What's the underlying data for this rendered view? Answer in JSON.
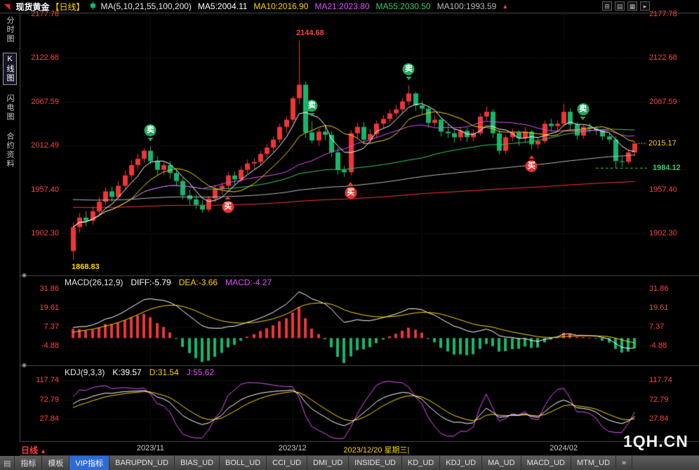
{
  "top_bar": {
    "app_icon": "◥",
    "symbol": "现货黄金",
    "period_tag": "【日线】",
    "ma_legend": [
      {
        "text": "MA(5,10,21,55,100,200)",
        "color": "#e8e8e8"
      },
      {
        "text": "MA5:2004.11",
        "color": "#ffffff"
      },
      {
        "text": "MA10:2016.90",
        "color": "#ffd400"
      },
      {
        "text": "MA21:2023.80",
        "color": "#e54dff"
      },
      {
        "text": "MA55:2030.50",
        "color": "#33cc66"
      },
      {
        "text": "MA100:1993.59",
        "color": "#b8b8b8"
      }
    ],
    "more_icon": "▲",
    "window_icons": [
      {
        "key": "grid-layout",
        "glyph": "⊞"
      },
      {
        "key": "rows-layout",
        "glyph": "▤"
      },
      {
        "key": "columns-layout",
        "glyph": "▦"
      },
      {
        "key": "expand",
        "glyph": "▸"
      }
    ]
  },
  "sidebar": {
    "items": [
      {
        "key": "time-chart",
        "label": "分时图",
        "selected": false
      },
      {
        "key": "kline-chart",
        "label": "K线图",
        "selected": true
      },
      {
        "key": "flash-chart",
        "label": "闪电图",
        "selected": false
      },
      {
        "key": "contract-info",
        "label": "合约资料",
        "selected": false
      }
    ]
  },
  "chart_data": {
    "type": "candlestick",
    "title": "现货黄金 日线",
    "panels": {
      "main": {
        "y_ticks": [
          2177.78,
          2122.68,
          2067.59,
          2012.49,
          1957.4,
          1902.3
        ],
        "y_ticks_right": [
          2177.78,
          2122.68,
          2067.59,
          1957.4,
          1902.3
        ],
        "annotations": {
          "high_label": "2144.68",
          "low_label": "1868.83",
          "last_price": "2015.17",
          "low_line": "1984.12"
        }
      },
      "macd": {
        "params": [
          26,
          12,
          9
        ],
        "legend": [
          {
            "text": "MACD(26,12,9)",
            "color": "#e8e8e8"
          },
          {
            "text": "DIFF:-5.79",
            "color": "#ffffff"
          },
          {
            "text": "DEA:-3.66",
            "color": "#ffd400"
          },
          {
            "text": "MACD:-4.27",
            "color": "#e54dff"
          }
        ],
        "y_ticks": [
          31.86,
          19.61,
          7.37,
          -4.88
        ]
      },
      "kdj": {
        "params": [
          9,
          3,
          3
        ],
        "legend": [
          {
            "text": "KDJ(9,3,3)",
            "color": "#e8e8e8"
          },
          {
            "text": "K:39.57",
            "color": "#ffffff"
          },
          {
            "text": "D:31.54",
            "color": "#ffd400"
          },
          {
            "text": "J:55.62",
            "color": "#e54dff"
          }
        ],
        "y_ticks": [
          117.74,
          72.79,
          27.84
        ]
      }
    },
    "ma_series": [
      {
        "period": 5,
        "color": "#ffffff"
      },
      {
        "period": 10,
        "color": "#ffd400"
      },
      {
        "period": 21,
        "color": "#e54dff"
      },
      {
        "period": 55,
        "color": "#33cc66"
      },
      {
        "period": 100,
        "color": "#b8b8b8",
        "seed": 1945
      },
      {
        "period": 200,
        "color": "#ff3333",
        "seed": 1935
      }
    ],
    "ohlc": [
      [
        1880,
        1916,
        1868.83,
        1910
      ],
      [
        1910,
        1928,
        1903,
        1922
      ],
      [
        1922,
        1930,
        1911,
        1918
      ],
      [
        1918,
        1936,
        1913,
        1930
      ],
      [
        1930,
        1948,
        1926,
        1942
      ],
      [
        1942,
        1960,
        1938,
        1955
      ],
      [
        1955,
        1961,
        1942,
        1948
      ],
      [
        1948,
        1968,
        1945,
        1962
      ],
      [
        1962,
        1981,
        1958,
        1975
      ],
      [
        1975,
        1994,
        1971,
        1988
      ],
      [
        1988,
        2002,
        1982,
        1996
      ],
      [
        1996,
        2009,
        1991,
        2006
      ],
      [
        2006,
        2012,
        1989,
        1993
      ],
      [
        1993,
        1999,
        1975,
        1982
      ],
      [
        1982,
        1992,
        1976,
        1988
      ],
      [
        1988,
        1993,
        1971,
        1978
      ],
      [
        1978,
        1983,
        1961,
        1968
      ],
      [
        1968,
        1972,
        1945,
        1950
      ],
      [
        1950,
        1957,
        1938,
        1945
      ],
      [
        1945,
        1951,
        1933,
        1938
      ],
      [
        1938,
        1944,
        1928,
        1932
      ],
      [
        1932,
        1949,
        1929,
        1946
      ],
      [
        1946,
        1963,
        1941,
        1958
      ],
      [
        1958,
        1966,
        1951,
        1962
      ],
      [
        1962,
        1979,
        1957,
        1975
      ],
      [
        1975,
        1980,
        1963,
        1970
      ],
      [
        1970,
        1986,
        1966,
        1982
      ],
      [
        1982,
        1995,
        1977,
        1990
      ],
      [
        1990,
        1997,
        1983,
        1992
      ],
      [
        1992,
        2006,
        1987,
        2002
      ],
      [
        2002,
        2014,
        1997,
        2010
      ],
      [
        2010,
        2024,
        2004,
        2020
      ],
      [
        2020,
        2040,
        2016,
        2036
      ],
      [
        2036,
        2049,
        2028,
        2045
      ],
      [
        2045,
        2075,
        2041,
        2072
      ],
      [
        2072,
        2144.68,
        2064,
        2089
      ],
      [
        2089,
        2093,
        2022,
        2029
      ],
      [
        2029,
        2043,
        2015,
        2019
      ],
      [
        2019,
        2034,
        2012,
        2030
      ],
      [
        2030,
        2038,
        2019,
        2026
      ],
      [
        2026,
        2031,
        1998,
        2004
      ],
      [
        2004,
        2010,
        1976,
        1982
      ],
      [
        1982,
        1987,
        1973,
        1979
      ],
      [
        1979,
        2032,
        1975,
        2028
      ],
      [
        2028,
        2041,
        2021,
        2036
      ],
      [
        2036,
        2042,
        2014,
        2020
      ],
      [
        2020,
        2033,
        2015,
        2027
      ],
      [
        2027,
        2044,
        2022,
        2040
      ],
      [
        2040,
        2051,
        2034,
        2046
      ],
      [
        2046,
        2058,
        2041,
        2053
      ],
      [
        2053,
        2064,
        2048,
        2058
      ],
      [
        2058,
        2072,
        2053,
        2068
      ],
      [
        2068,
        2088.37,
        2063,
        2078
      ],
      [
        2078,
        2080,
        2056,
        2063
      ],
      [
        2063,
        2069,
        2052,
        2059
      ],
      [
        2059,
        2062,
        2035,
        2041
      ],
      [
        2041,
        2051,
        2036,
        2045
      ],
      [
        2045,
        2048,
        2024,
        2030
      ],
      [
        2030,
        2039,
        2022,
        2028
      ],
      [
        2028,
        2033,
        2016,
        2023
      ],
      [
        2023,
        2036,
        2018,
        2031
      ],
      [
        2031,
        2035,
        2017,
        2023
      ],
      [
        2023,
        2033,
        2018,
        2028
      ],
      [
        2028,
        2053,
        2025,
        2049
      ],
      [
        2049,
        2062,
        2044,
        2055
      ],
      [
        2055,
        2058,
        2022,
        2028
      ],
      [
        2028,
        2032,
        2001,
        2006
      ],
      [
        2006,
        2026,
        2002,
        2023
      ],
      [
        2023,
        2034,
        2018,
        2029
      ],
      [
        2029,
        2032,
        2012,
        2022
      ],
      [
        2022,
        2036,
        2017,
        2030
      ],
      [
        2030,
        2032,
        2008,
        2014
      ],
      [
        2014,
        2023,
        2009,
        2018
      ],
      [
        2018,
        2044,
        2015,
        2040
      ],
      [
        2040,
        2046,
        2030,
        2037
      ],
      [
        2037,
        2044,
        2031,
        2040
      ],
      [
        2040,
        2065,
        2036,
        2055
      ],
      [
        2055,
        2059,
        2031,
        2039
      ],
      [
        2039,
        2042,
        2020,
        2025
      ],
      [
        2025,
        2038,
        2021,
        2036
      ],
      [
        2036,
        2040,
        2029,
        2034
      ],
      [
        2034,
        2037,
        2026,
        2031
      ],
      [
        2031,
        2033,
        2019,
        2024
      ],
      [
        2024,
        2028,
        2015,
        2020
      ],
      [
        2020,
        2024,
        1984.12,
        1993
      ],
      [
        1993,
        1999,
        1986,
        1992
      ],
      [
        1992,
        2007,
        1989,
        2004
      ],
      [
        2004,
        2017,
        1999,
        2015.17
      ]
    ],
    "signals": [
      {
        "index": 12,
        "type": "sell",
        "label": "卖"
      },
      {
        "index": 24,
        "type": "buy",
        "label": "买"
      },
      {
        "index": 37,
        "type": "sell",
        "label": "卖"
      },
      {
        "index": 43,
        "type": "buy",
        "label": "买"
      },
      {
        "index": 52,
        "type": "sell",
        "label": "卖"
      },
      {
        "index": 71,
        "type": "buy",
        "label": "买"
      },
      {
        "index": 79,
        "type": "sell",
        "label": "卖"
      }
    ],
    "x_labels": [
      {
        "index": 12,
        "label": "2023/11",
        "highlight": false
      },
      {
        "index": 34,
        "label": "2023/12",
        "highlight": false
      },
      {
        "index": 47,
        "label": "2023/12/20 星期三|",
        "highlight": true
      },
      {
        "index": 76,
        "label": "2024/02",
        "highlight": false
      }
    ]
  },
  "bottom": {
    "period_label": "日线",
    "period_icon": "▲",
    "watermark": "1QH.CN",
    "tab_icon": "▤",
    "tabs": [
      {
        "key": "indicators",
        "label": "指标",
        "selected": false
      },
      {
        "key": "templates",
        "label": "模板",
        "selected": false
      },
      {
        "key": "vip-indicators",
        "label": "VIP指标",
        "selected": true
      },
      {
        "key": "barupdn-ud",
        "label": "BARUPDN_UD",
        "selected": false
      },
      {
        "key": "bias-ud",
        "label": "BIAS_UD",
        "selected": false
      },
      {
        "key": "boll-ud",
        "label": "BOLL_UD",
        "selected": false
      },
      {
        "key": "cci-ud",
        "label": "CCI_UD",
        "selected": false
      },
      {
        "key": "dmi-ud",
        "label": "DMI_UD",
        "selected": false
      },
      {
        "key": "inside-ud",
        "label": "INSIDE_UD",
        "selected": false
      },
      {
        "key": "kd-ud",
        "label": "KD_UD",
        "selected": false
      },
      {
        "key": "kdj-ud",
        "label": "KDJ_UD",
        "selected": false
      },
      {
        "key": "ma-ud",
        "label": "MA_UD",
        "selected": false
      },
      {
        "key": "macd-ud",
        "label": "MACD_UD",
        "selected": false
      },
      {
        "key": "mtm-ud",
        "label": "MTM_UD",
        "selected": false
      },
      {
        "key": "more-tabs",
        "label": "»",
        "selected": false
      }
    ]
  },
  "colors": {
    "up": "#ef3535",
    "down": "#14b76b",
    "axis_label": "#ff4242",
    "highlight_label": "#ffd400",
    "low_line": "#2fd06f",
    "grid": "#2a2a2a",
    "separator": "#4a4a4a",
    "xlabel": "#cfcfcf"
  }
}
